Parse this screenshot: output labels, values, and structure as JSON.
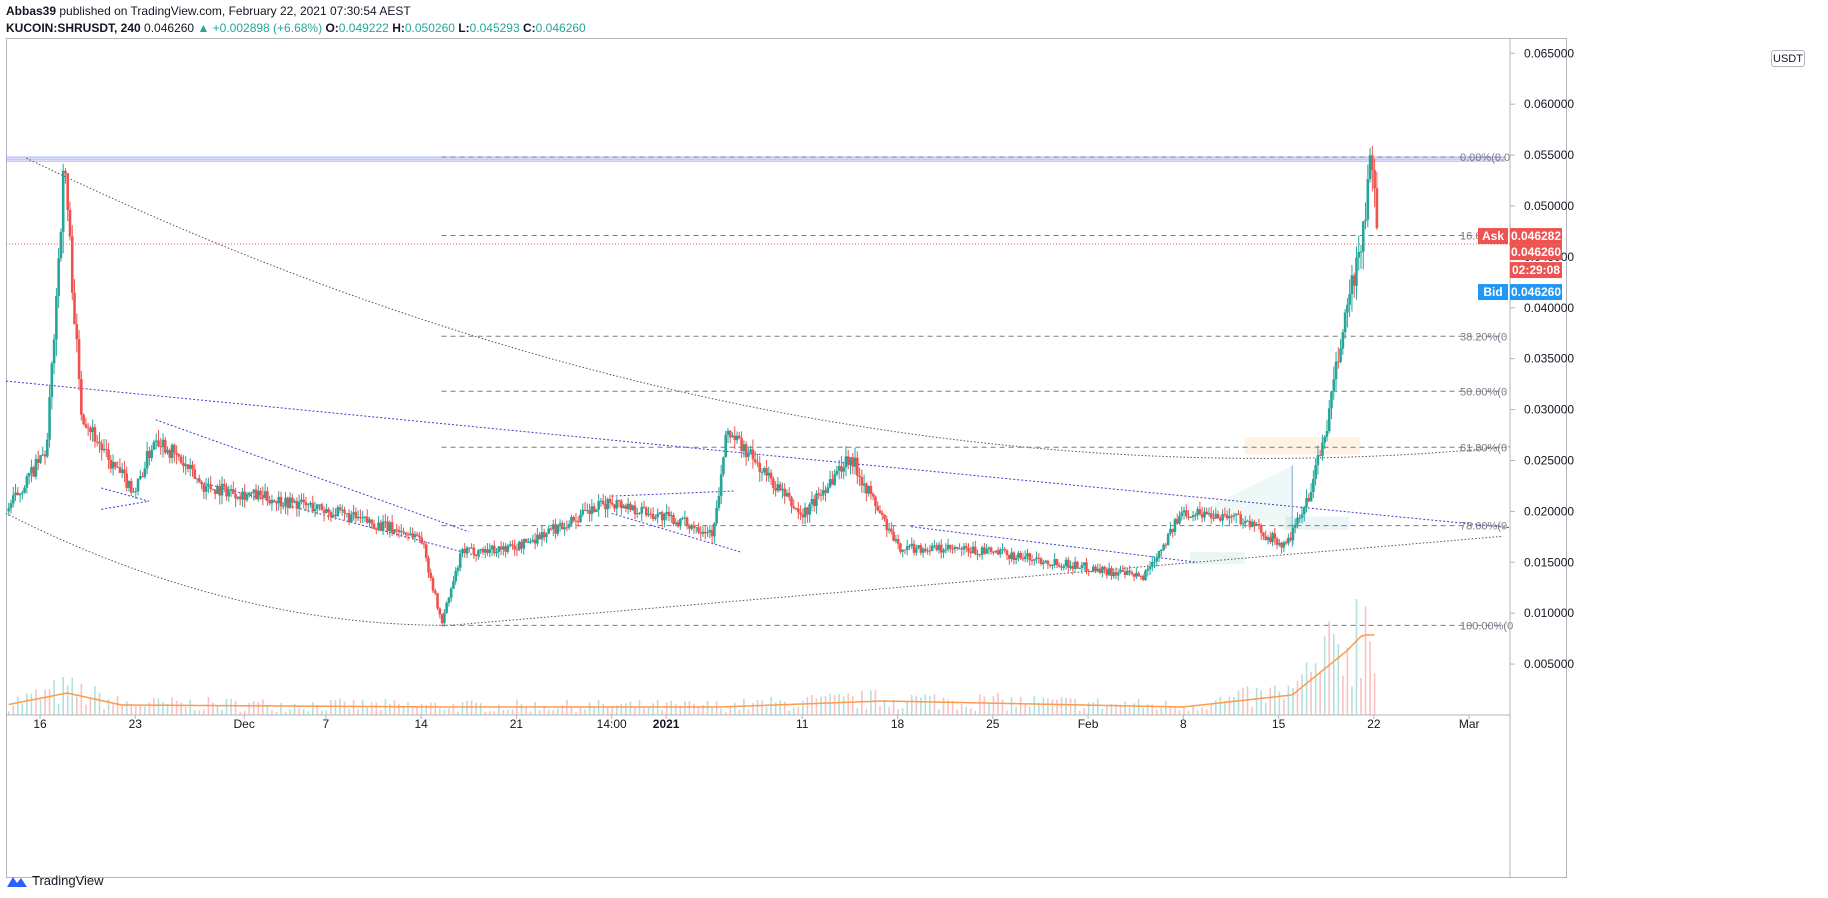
{
  "header": {
    "publisher": "Abbas39",
    "published_text": "published on TradingView.com, February 22, 2021 07:30:54 AEST",
    "symbol": "KUCOIN:SHRUSDT, 240",
    "last": "0.046260",
    "change": "▲ +0.002898 (+6.68%)",
    "o_label": "O:",
    "o": "0.049222",
    "h_label": "H:",
    "h": "0.050260",
    "l_label": "L:",
    "l": "0.045293",
    "c_label": "C:",
    "c": "0.046260"
  },
  "footer": {
    "brand": "TradingView"
  },
  "colors": {
    "up": "#26a69a",
    "down": "#ef5350",
    "ask": "#ef5350",
    "bid": "#2196f3",
    "trend": "#3d3dd6",
    "fib": "#787b86",
    "ma": "#ff9a4d"
  },
  "chart_data": {
    "type": "candlestick",
    "unit": "USDT",
    "ylim": [
      0.0,
      0.0665
    ],
    "y_ticks": [
      "0.065000",
      "0.060000",
      "0.055000",
      "0.050000",
      "0.045000",
      "0.040000",
      "0.035000",
      "0.030000",
      "0.025000",
      "0.020000",
      "0.015000",
      "0.010000",
      "0.005000"
    ],
    "y_tick_values": [
      0.065,
      0.06,
      0.055,
      0.05,
      0.045,
      0.04,
      0.035,
      0.03,
      0.025,
      0.02,
      0.015,
      0.01,
      0.005
    ],
    "x_ticks": [
      "16",
      "23",
      "Dec",
      "7",
      "14",
      "21",
      "14:00",
      "2021",
      "11",
      "18",
      "25",
      "Feb",
      "8",
      "15",
      "22",
      "Mar"
    ],
    "x_tick_days": [
      0,
      7,
      15,
      21,
      28,
      35,
      42,
      46,
      56,
      63,
      70,
      77,
      84,
      91,
      98,
      105
    ],
    "x_range_days": [
      -2.5,
      108
    ],
    "price_labels": {
      "ask_label": "Ask",
      "ask": "0.046282",
      "last": "0.046260",
      "countdown": "02:29:08",
      "bid_label": "Bid",
      "bid": "0.046260"
    },
    "fib_levels": [
      {
        "label": "0.00%(0.0",
        "value": 0.0548
      },
      {
        "label": "16.66%(0",
        "value": 0.0471
      },
      {
        "label": "38.20%(0",
        "value": 0.0372
      },
      {
        "label": "50.00%(0",
        "value": 0.0318
      },
      {
        "label": "61.80%(0",
        "value": 0.0263
      },
      {
        "label": "78.60%(0",
        "value": 0.0186
      },
      {
        "label": "100.00%(0",
        "value": 0.0088
      }
    ],
    "anchors": [
      {
        "day": -2.5,
        "price": 0.02
      },
      {
        "day": 0.5,
        "price": 0.026
      },
      {
        "day": 1.8,
        "price": 0.0545
      },
      {
        "day": 2.3,
        "price": 0.044
      },
      {
        "day": 3.0,
        "price": 0.03
      },
      {
        "day": 5.0,
        "price": 0.025
      },
      {
        "day": 7.0,
        "price": 0.022
      },
      {
        "day": 8.5,
        "price": 0.0275
      },
      {
        "day": 12.0,
        "price": 0.0225
      },
      {
        "day": 20.0,
        "price": 0.0205
      },
      {
        "day": 28.0,
        "price": 0.0175
      },
      {
        "day": 29.5,
        "price": 0.009
      },
      {
        "day": 31.0,
        "price": 0.016
      },
      {
        "day": 35.0,
        "price": 0.0165
      },
      {
        "day": 42.0,
        "price": 0.021
      },
      {
        "day": 49.5,
        "price": 0.018
      },
      {
        "day": 50.5,
        "price": 0.028
      },
      {
        "day": 56.0,
        "price": 0.0195
      },
      {
        "day": 59.5,
        "price": 0.0255
      },
      {
        "day": 63.0,
        "price": 0.0165
      },
      {
        "day": 70.0,
        "price": 0.016
      },
      {
        "day": 77.0,
        "price": 0.0145
      },
      {
        "day": 81.0,
        "price": 0.0135
      },
      {
        "day": 84.0,
        "price": 0.02
      },
      {
        "day": 88.0,
        "price": 0.0195
      },
      {
        "day": 91.5,
        "price": 0.0165
      },
      {
        "day": 93.0,
        "price": 0.0205
      },
      {
        "day": 94.5,
        "price": 0.028
      },
      {
        "day": 96.0,
        "price": 0.04
      },
      {
        "day": 97.2,
        "price": 0.047
      },
      {
        "day": 97.8,
        "price": 0.0548
      },
      {
        "day": 98.3,
        "price": 0.0463
      }
    ],
    "volume_anchors": [
      {
        "day": -2.5,
        "v": 0.25
      },
      {
        "day": 2.0,
        "v": 0.55
      },
      {
        "day": 6.0,
        "v": 0.25
      },
      {
        "day": 30.0,
        "v": 0.2
      },
      {
        "day": 50.0,
        "v": 0.2
      },
      {
        "day": 62.0,
        "v": 0.35
      },
      {
        "day": 84.0,
        "v": 0.2
      },
      {
        "day": 92.0,
        "v": 0.5
      },
      {
        "day": 96.0,
        "v": 1.6
      },
      {
        "day": 98.3,
        "v": 2.4
      }
    ]
  }
}
